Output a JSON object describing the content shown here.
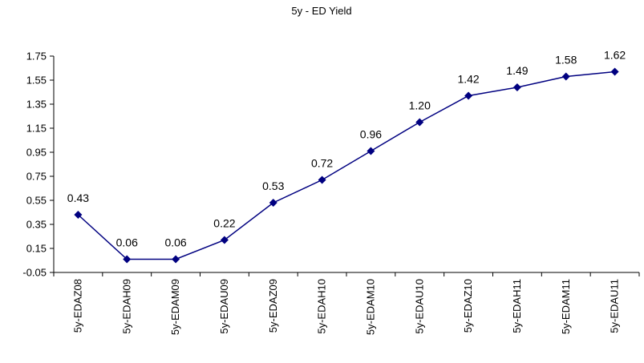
{
  "chart_data": {
    "type": "line",
    "title": "5y - ED Yield",
    "xlabel": "",
    "ylabel": "",
    "categories": [
      "5y-EDAZ08",
      "5y-EDAH09",
      "5y-EDAM09",
      "5y-EDAU09",
      "5y-EDAZ09",
      "5y-EDAH10",
      "5y-EDAM10",
      "5y-EDAU10",
      "5y-EDAZ10",
      "5y-EDAH11",
      "5y-EDAM11",
      "5y-EDAU11"
    ],
    "values": [
      0.43,
      0.06,
      0.06,
      0.22,
      0.53,
      0.72,
      0.96,
      1.2,
      1.42,
      1.49,
      1.58,
      1.62
    ],
    "data_labels": [
      "0.43",
      "0.06",
      "0.06",
      "0.22",
      "0.53",
      "0.72",
      "0.96",
      "1.20",
      "1.42",
      "1.49",
      "1.58",
      "1.62"
    ],
    "ylim": [
      -0.05,
      1.75
    ],
    "yticks": [
      -0.05,
      0.15,
      0.35,
      0.55,
      0.75,
      0.95,
      1.15,
      1.35,
      1.55,
      1.75
    ],
    "ytick_labels": [
      "-0.05",
      "0.15",
      "0.35",
      "0.55",
      "0.75",
      "0.95",
      "1.15",
      "1.35",
      "1.55",
      "1.75"
    ],
    "grid": false,
    "legend": "none",
    "colors": {
      "series": "#000080",
      "axis": "#000000"
    }
  }
}
